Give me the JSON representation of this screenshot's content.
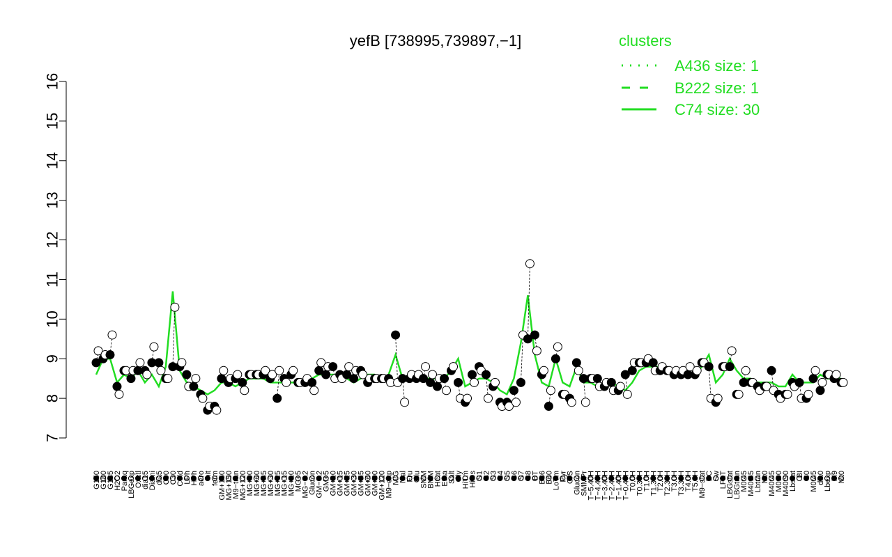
{
  "chart_data": {
    "type": "line",
    "title": "yefB [738995,739897,−1]",
    "xlabel": "",
    "ylabel": "",
    "ylim": [
      7,
      16
    ],
    "yticks": [
      7,
      8,
      9,
      10,
      11,
      12,
      13,
      14,
      15,
      16
    ],
    "grid": false,
    "legend": {
      "title": "clusters",
      "placement": "top-right",
      "entries": [
        {
          "label": "A436 size: 1",
          "style": "dotted"
        },
        {
          "label": "B222 size: 1",
          "style": "dashed"
        },
        {
          "label": "C74 size: 30",
          "style": "solid"
        }
      ]
    },
    "colors": {
      "series": "#22dd22",
      "text": "#000000"
    },
    "labels": [
      "G150",
      "G180",
      "G135",
      "H2O2",
      "Paraq",
      "LBGexp",
      "Oxctl",
      "dia15",
      "Diami",
      "dia5",
      "C90",
      "C30",
      "Cold",
      "LPh",
      "HPh",
      "aero",
      "nit",
      "ferm",
      "GM+150",
      "MG+150",
      "M9−tran",
      "MG+120",
      "MG+90",
      "MG+60",
      "MG+45",
      "MG+30",
      "MG+25",
      "MG+15",
      "MG+10",
      "MG+5",
      "MG−0.2",
      "Glucon",
      "GM−0.2",
      "GM+5",
      "GM+10",
      "GM+15",
      "GM+25",
      "GM+30",
      "GM+45",
      "GM+60",
      "GM+90",
      "GM+120",
      "M9−exp",
      "M/G",
      "Mal",
      "Fru",
      "Glu",
      "SMM",
      "BMM",
      "Heat",
      "Etha",
      "Salt",
      "Gly",
      "HiTm",
      "HiOs",
      "S1",
      "S2",
      "S3",
      "S4",
      "S5",
      "S6",
      "S7",
      "S8",
      "BT",
      "B36",
      "B60",
      "LoTm",
      "Pyr",
      "G/S",
      "Glucon",
      "SMMPr",
      "T−5.40H",
      "T−4.40H",
      "T−3.40H",
      "T−2.40H",
      "T−1.40H",
      "T−0.40H",
      "T0.0H",
      "T0.30H",
      "T1.0H",
      "T1.30H",
      "T2.0H",
      "T2.30H",
      "T3.0H",
      "T3.30H",
      "T4.0H",
      "T5.0H",
      "M9−stat",
      "BC",
      "Sw",
      "LPhT",
      "LBGstat",
      "LBGtran",
      "M0t45",
      "M40t45",
      "Lbtran",
      "Mt0",
      "M40t45",
      "M0t90",
      "M40t90",
      "Lbstat",
      "BI",
      "S0",
      "M0t45",
      "dia0",
      "Lbexp",
      "M9",
      "Mt0"
    ],
    "tick_labels": [
      "G150",
      "G180",
      "G135",
      "H2O2",
      "Paraq",
      "LBGexp",
      "Oxctl",
      "dia15",
      "Diami",
      "dia5",
      "C90",
      "C30",
      "Cold",
      "LPh",
      "HPh",
      "aero",
      "nit",
      "ferm",
      "GM+150",
      "MG+150",
      "M9−tran",
      "MG+120",
      "MG+90",
      "MG+60",
      "MG+45",
      "MG+30",
      "MG+25",
      "MG+15",
      "MG+10",
      "MG+5",
      "MG−0.2",
      "Glucon",
      "GM−0.2",
      "GM+5",
      "GM+10",
      "GM+15",
      "GM+25",
      "GM+30",
      "GM+45",
      "GM+60",
      "GM+90",
      "GM+120",
      "M9−exp",
      "M/G",
      "Mal",
      "Fru",
      "Glu",
      "SMM",
      "BMM",
      "Heat",
      "Etha",
      "Salt",
      "Gly",
      "HiTm",
      "HiOs",
      "S1",
      "S2",
      "S3",
      "S4",
      "S5",
      "S6",
      "S7",
      "S8",
      "BT",
      "B36",
      "B60",
      "LoTm",
      "Pyr",
      "G/S",
      "Glucon",
      "SMMPr",
      "T−5.40H",
      "T−4.40H",
      "T−3.40H",
      "T−2.40H",
      "T−1.40H",
      "T−0.40H",
      "T0.0H",
      "T0.30H",
      "T1.0H",
      "T1.30H",
      "T2.0H",
      "T2.30H",
      "T3.0H",
      "T3.30H",
      "T4.0H",
      "T5.0H",
      "M9−stat",
      "BC",
      "Sw",
      "LPhT",
      "LBGstat",
      "LBGtran",
      "M0t45",
      "M40t45",
      "Lbtran",
      "Mt0",
      "M40t45",
      "M0t90",
      "M40t90",
      "Lbstat",
      "BI",
      "S0",
      "M0t45",
      "dia0",
      "Lbexp",
      "M9",
      "Mt0"
    ],
    "line_values": [
      8.6,
      9.0,
      9.0,
      8.4,
      8.6,
      8.5,
      8.7,
      8.4,
      8.6,
      8.3,
      8.8,
      10.7,
      8.7,
      8.4,
      8.3,
      8.2,
      8.1,
      8.2,
      8.4,
      8.4,
      8.3,
      8.4,
      8.5,
      8.5,
      8.5,
      8.4,
      8.4,
      8.4,
      8.4,
      8.4,
      8.4,
      8.5,
      8.6,
      8.6,
      8.6,
      8.6,
      8.5,
      8.4,
      8.5,
      8.6,
      8.6,
      8.5,
      8.6,
      9.1,
      8.5,
      8.5,
      8.5,
      8.5,
      8.5,
      8.5,
      8.5,
      8.7,
      9.0,
      8.3,
      8.4,
      8.5,
      8.5,
      8.4,
      8.2,
      8.1,
      8.5,
      9.4,
      10.6,
      9.1,
      8.4,
      8.3,
      9.0,
      8.4,
      8.3,
      8.8,
      8.4,
      8.4,
      8.3,
      8.4,
      8.4,
      8.3,
      8.2,
      8.4,
      8.7,
      8.8,
      8.8,
      8.8,
      8.7,
      8.7,
      8.6,
      8.6,
      8.6,
      8.8,
      9.1,
      8.4,
      8.6,
      9.0,
      8.7,
      8.5,
      8.5,
      8.4,
      8.4,
      8.4,
      8.3,
      8.3,
      8.6,
      8.4,
      8.4,
      8.4,
      8.6,
      8.5,
      8.5,
      8.5
    ],
    "points_filled": [
      8.9,
      9.0,
      9.1,
      8.3,
      8.7,
      8.5,
      8.7,
      8.7,
      8.9,
      8.9,
      8.5,
      8.8,
      8.8,
      8.6,
      8.3,
      8.1,
      7.7,
      7.8,
      8.5,
      8.4,
      8.5,
      8.4,
      8.6,
      8.6,
      8.6,
      8.5,
      8.0,
      8.5,
      8.6,
      8.4,
      8.4,
      8.4,
      8.7,
      8.6,
      8.8,
      8.6,
      8.6,
      8.5,
      8.7,
      8.4,
      8.5,
      8.5,
      8.5,
      9.6,
      8.5,
      8.5,
      8.5,
      8.5,
      8.4,
      8.3,
      8.5,
      8.7,
      8.4,
      7.9,
      8.6,
      8.8,
      8.6,
      8.3,
      7.9,
      7.9,
      8.2,
      8.4,
      9.5,
      9.6,
      8.6,
      7.8,
      9.0,
      8.1,
      8.0,
      8.9,
      8.5,
      8.5,
      8.5,
      8.3,
      8.4,
      8.2,
      8.6,
      8.7,
      8.9,
      8.9,
      8.9,
      8.7,
      8.7,
      8.6,
      8.6,
      8.6,
      8.6,
      8.9,
      8.8,
      7.9,
      8.8,
      8.8,
      8.1,
      8.4,
      8.4,
      8.3,
      8.3,
      8.7,
      8.1,
      8.1,
      8.4,
      8.4,
      8.0,
      8.5,
      8.2,
      8.6,
      8.5,
      8.4
    ],
    "points_open": [
      9.2,
      9.1,
      9.6,
      8.1,
      8.7,
      8.7,
      8.9,
      8.6,
      9.3,
      8.7,
      8.5,
      10.3,
      8.9,
      8.3,
      8.5,
      8.0,
      7.8,
      7.7,
      8.7,
      8.5,
      8.6,
      8.2,
      8.6,
      8.6,
      8.7,
      8.6,
      8.7,
      8.4,
      8.7,
      8.4,
      8.5,
      8.2,
      8.9,
      8.8,
      8.5,
      8.5,
      8.8,
      8.7,
      8.6,
      8.5,
      8.5,
      8.5,
      8.4,
      8.4,
      7.9,
      8.6,
      8.6,
      8.8,
      8.6,
      8.5,
      8.2,
      8.8,
      8.0,
      8.0,
      8.4,
      8.7,
      8.0,
      8.4,
      7.8,
      7.8,
      7.9,
      9.6,
      11.4,
      9.2,
      8.7,
      8.2,
      9.3,
      8.1,
      7.9,
      8.7,
      7.9,
      8.5,
      8.3,
      8.4,
      8.2,
      8.3,
      8.1,
      8.9,
      8.9,
      9.0,
      8.7,
      8.8,
      8.7,
      8.7,
      8.7,
      8.8,
      8.7,
      8.9,
      8.0,
      8.0,
      8.8,
      9.2,
      8.1,
      8.7,
      8.4,
      8.2,
      8.3,
      8.2,
      8.0,
      8.1,
      8.3,
      8.0,
      8.1,
      8.7,
      8.4,
      8.6,
      8.6,
      8.4
    ]
  }
}
